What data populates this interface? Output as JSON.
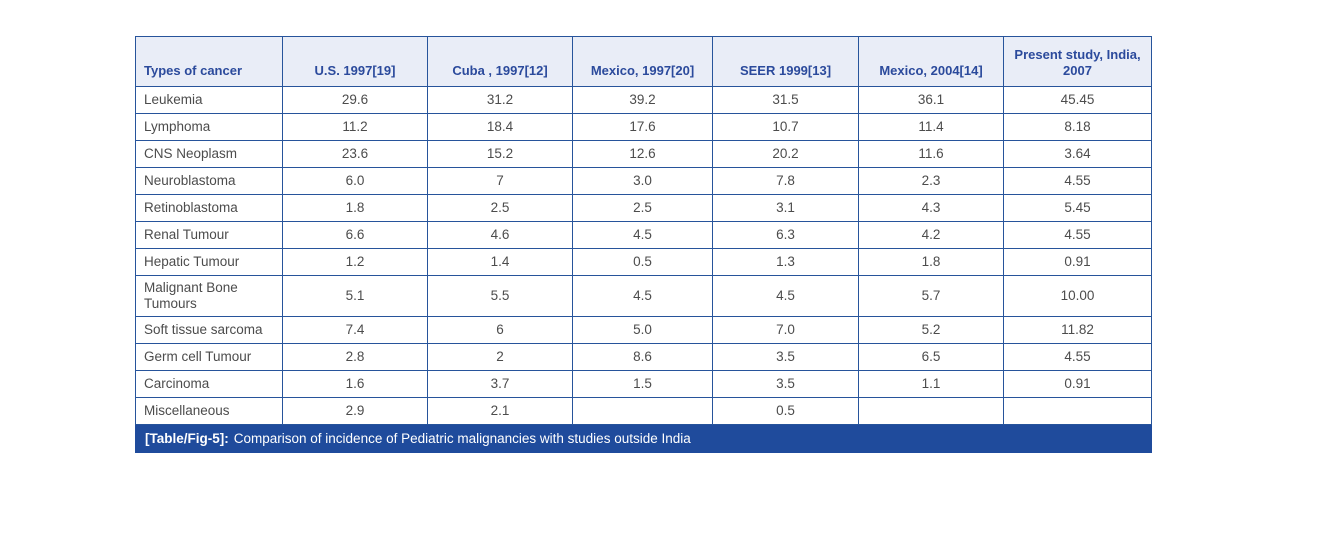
{
  "table": {
    "columns": [
      "Types of cancer",
      "U.S. 1997[19]",
      "Cuba , 1997[12]",
      "Mexico, 1997[20]",
      "SEER 1999[13]",
      "Mexico, 2004[14]",
      "Present study, India, 2007"
    ],
    "rows": [
      {
        "type": "Leukemia",
        "values": [
          "29.6",
          "31.2",
          "39.2",
          "31.5",
          "36.1",
          "45.45"
        ]
      },
      {
        "type": "Lymphoma",
        "values": [
          "11.2",
          "18.4",
          "17.6",
          "10.7",
          "11.4",
          "8.18"
        ]
      },
      {
        "type": "CNS Neoplasm",
        "values": [
          "23.6",
          "15.2",
          "12.6",
          "20.2",
          "11.6",
          "3.64"
        ]
      },
      {
        "type": "Neuroblastoma",
        "values": [
          "6.0",
          "7",
          "3.0",
          "7.8",
          "2.3",
          "4.55"
        ]
      },
      {
        "type": "Retinoblastoma",
        "values": [
          "1.8",
          "2.5",
          "2.5",
          "3.1",
          "4.3",
          "5.45"
        ]
      },
      {
        "type": "Renal Tumour",
        "values": [
          "6.6",
          "4.6",
          "4.5",
          "6.3",
          "4.2",
          "4.55"
        ]
      },
      {
        "type": "Hepatic Tumour",
        "values": [
          "1.2",
          "1.4",
          "0.5",
          "1.3",
          "1.8",
          "0.91"
        ]
      },
      {
        "type": "Malignant Bone Tumours",
        "values": [
          "5.1",
          "5.5",
          "4.5",
          "4.5",
          "5.7",
          "10.00"
        ]
      },
      {
        "type": "Soft tissue sarcoma",
        "values": [
          "7.4",
          "6",
          "5.0",
          "7.0",
          "5.2",
          "11.82"
        ]
      },
      {
        "type": "Germ cell Tumour",
        "values": [
          "2.8",
          "2",
          "8.6",
          "3.5",
          "6.5",
          "4.55"
        ]
      },
      {
        "type": "Carcinoma",
        "values": [
          "1.6",
          "3.7",
          "1.5",
          "3.5",
          "1.1",
          "0.91"
        ]
      },
      {
        "type": "Miscellaneous",
        "values": [
          "2.9",
          "2.1",
          "",
          "0.5",
          "",
          ""
        ]
      }
    ],
    "caption": {
      "label": "[Table/Fig-5]:",
      "text": "Comparison of incidence of Pediatric malignancies with studies outside India"
    },
    "colors": {
      "grid_border": "#27549b",
      "header_background": "#e9edf7",
      "header_text": "#2b4a9c",
      "body_text": "#4c4c4c",
      "caption_background": "#1f4b9c",
      "caption_text": "#ffffff"
    }
  }
}
